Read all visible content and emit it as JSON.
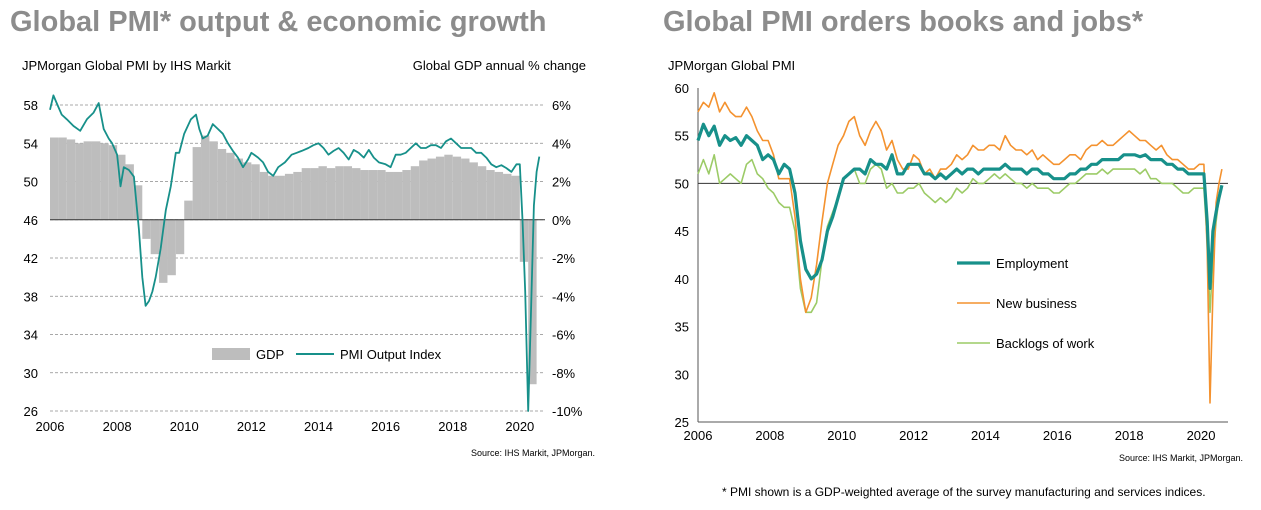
{
  "footnote": "* PMI shown is a GDP-weighted average of the survey manufacturing and services indices.",
  "colors": {
    "teal": "#17908a",
    "orange": "#f4922f",
    "green": "#9ccb67",
    "gdp_gray": "#bdbdbd",
    "grid": "#8c8c8c",
    "title_gray": "#8c8c8c"
  },
  "chart_data": [
    {
      "type": "bar+line",
      "title": "Global PMI* output & economic growth",
      "subtitle_left": "JPMorgan Global PMI by IHS Markit",
      "subtitle_right": "Global GDP annual % change",
      "source": "Source: IHS Markit, JPMorgan.",
      "grid": "dashed horizontal",
      "legend_position": "bottom-right",
      "xlim": [
        2006,
        2020.75
      ],
      "x_ticks": [
        "2006",
        "2008",
        "2010",
        "2012",
        "2014",
        "2016",
        "2018",
        "2020"
      ],
      "left_axis": {
        "ylim": [
          26,
          58
        ],
        "ticks": [
          "26",
          "30",
          "34",
          "38",
          "42",
          "46",
          "50",
          "54",
          "58"
        ]
      },
      "right_axis": {
        "ylim": [
          -10,
          6
        ],
        "ticks": [
          "-10%",
          "-8%",
          "-6%",
          "-4%",
          "-2%",
          "0%",
          "2%",
          "4%",
          "6%"
        ]
      },
      "series": [
        {
          "name": "GDP",
          "kind": "bar",
          "axis": "right",
          "x": [
            2006.0,
            2006.25,
            2006.5,
            2006.75,
            2007.0,
            2007.25,
            2007.5,
            2007.75,
            2008.0,
            2008.25,
            2008.5,
            2008.75,
            2009.0,
            2009.25,
            2009.5,
            2009.75,
            2010.0,
            2010.25,
            2010.5,
            2010.75,
            2011.0,
            2011.25,
            2011.5,
            2011.75,
            2012.0,
            2012.25,
            2012.5,
            2012.75,
            2013.0,
            2013.25,
            2013.5,
            2013.75,
            2014.0,
            2014.25,
            2014.5,
            2014.75,
            2015.0,
            2015.25,
            2015.5,
            2015.75,
            2016.0,
            2016.25,
            2016.5,
            2016.75,
            2017.0,
            2017.25,
            2017.5,
            2017.75,
            2018.0,
            2018.25,
            2018.5,
            2018.75,
            2019.0,
            2019.25,
            2019.5,
            2019.75,
            2020.0,
            2020.25
          ],
          "y": [
            4.3,
            4.3,
            4.2,
            4.0,
            4.1,
            4.1,
            4.0,
            3.9,
            3.4,
            2.9,
            1.8,
            -1.0,
            -1.8,
            -3.3,
            -2.9,
            -1.8,
            1.0,
            3.8,
            4.4,
            4.1,
            3.7,
            3.5,
            3.2,
            3.0,
            2.9,
            2.5,
            2.3,
            2.3,
            2.4,
            2.5,
            2.7,
            2.7,
            2.8,
            2.7,
            2.8,
            2.8,
            2.7,
            2.6,
            2.6,
            2.6,
            2.5,
            2.5,
            2.6,
            2.8,
            3.1,
            3.2,
            3.3,
            3.4,
            3.3,
            3.2,
            3.0,
            2.8,
            2.6,
            2.5,
            2.4,
            2.3,
            -2.2,
            -8.6
          ]
        },
        {
          "name": "PMI Output Index",
          "kind": "line",
          "axis": "left",
          "x": [
            2006.0,
            2006.1,
            2006.2,
            2006.35,
            2006.5,
            2006.7,
            2006.9,
            2007.1,
            2007.3,
            2007.45,
            2007.6,
            2007.75,
            2007.85,
            2008.0,
            2008.1,
            2008.2,
            2008.35,
            2008.5,
            2008.65,
            2008.75,
            2008.85,
            2008.95,
            2009.05,
            2009.15,
            2009.3,
            2009.45,
            2009.6,
            2009.75,
            2009.85,
            2010.0,
            2010.2,
            2010.35,
            2010.45,
            2010.55,
            2010.7,
            2010.85,
            2011.0,
            2011.15,
            2011.3,
            2011.45,
            2011.6,
            2011.75,
            2011.9,
            2012.0,
            2012.2,
            2012.35,
            2012.5,
            2012.65,
            2012.8,
            2013.0,
            2013.2,
            2013.35,
            2013.5,
            2013.7,
            2013.85,
            2014.0,
            2014.15,
            2014.3,
            2014.45,
            2014.6,
            2014.75,
            2014.9,
            2015.05,
            2015.2,
            2015.35,
            2015.5,
            2015.65,
            2015.8,
            2016.0,
            2016.15,
            2016.3,
            2016.45,
            2016.6,
            2016.75,
            2016.9,
            2017.05,
            2017.2,
            2017.35,
            2017.5,
            2017.65,
            2017.8,
            2017.95,
            2018.1,
            2018.25,
            2018.4,
            2018.55,
            2018.7,
            2018.85,
            2019.0,
            2019.15,
            2019.3,
            2019.45,
            2019.6,
            2019.75,
            2019.9,
            2020.0,
            2020.08,
            2020.16,
            2020.25,
            2020.33,
            2020.42,
            2020.5,
            2020.58
          ],
          "y": [
            57.5,
            59.0,
            58.2,
            57.0,
            56.5,
            55.8,
            55.3,
            56.5,
            57.2,
            58.2,
            55.5,
            54.5,
            54.0,
            52.8,
            49.5,
            51.5,
            51.2,
            50.5,
            45.0,
            40.0,
            37.0,
            37.5,
            38.5,
            40.0,
            43.0,
            47.0,
            49.5,
            53.0,
            53.0,
            55.0,
            56.5,
            57.0,
            55.5,
            54.5,
            54.8,
            56.0,
            55.5,
            55.0,
            54.0,
            53.2,
            52.5,
            51.5,
            52.3,
            53.0,
            52.5,
            52.0,
            51.0,
            50.6,
            51.5,
            52.0,
            52.8,
            53.0,
            53.2,
            53.5,
            53.8,
            54.0,
            53.5,
            52.8,
            53.2,
            53.5,
            53.0,
            52.3,
            53.3,
            53.0,
            52.5,
            53.3,
            52.5,
            52.0,
            51.8,
            51.5,
            52.8,
            52.8,
            53.0,
            53.5,
            54.0,
            53.5,
            53.5,
            53.8,
            53.8,
            53.5,
            54.2,
            54.5,
            54.0,
            53.5,
            53.5,
            53.5,
            53.0,
            53.0,
            52.5,
            51.8,
            51.5,
            51.7,
            51.4,
            51.0,
            51.8,
            51.8,
            46.0,
            38.5,
            26.0,
            36.0,
            47.5,
            51.0,
            52.6
          ]
        }
      ]
    },
    {
      "type": "line",
      "title": "Global PMI orders books and jobs*",
      "subtitle_left": "JPMorgan Global PMI",
      "source": "Source: IHS Markit, JPMorgan.",
      "legend_position": "center",
      "reference_line": 50,
      "xlim": [
        2006,
        2020.75
      ],
      "ylim": [
        25,
        60
      ],
      "x_ticks": [
        "2006",
        "2008",
        "2010",
        "2012",
        "2014",
        "2016",
        "2018",
        "2020"
      ],
      "y_ticks": [
        "25",
        "30",
        "35",
        "40",
        "45",
        "50",
        "55",
        "60"
      ],
      "x": [
        2006.0,
        2006.15,
        2006.3,
        2006.45,
        2006.6,
        2006.75,
        2006.9,
        2007.05,
        2007.2,
        2007.35,
        2007.5,
        2007.65,
        2007.8,
        2007.95,
        2008.1,
        2008.25,
        2008.4,
        2008.55,
        2008.7,
        2008.85,
        2009.0,
        2009.15,
        2009.3,
        2009.45,
        2009.6,
        2009.75,
        2009.9,
        2010.05,
        2010.2,
        2010.35,
        2010.5,
        2010.65,
        2010.8,
        2010.95,
        2011.1,
        2011.25,
        2011.4,
        2011.55,
        2011.7,
        2011.85,
        2012.0,
        2012.15,
        2012.3,
        2012.45,
        2012.6,
        2012.75,
        2012.9,
        2013.05,
        2013.2,
        2013.35,
        2013.5,
        2013.65,
        2013.8,
        2013.95,
        2014.1,
        2014.25,
        2014.4,
        2014.55,
        2014.7,
        2014.85,
        2015.0,
        2015.15,
        2015.3,
        2015.45,
        2015.6,
        2015.75,
        2015.9,
        2016.05,
        2016.2,
        2016.35,
        2016.5,
        2016.65,
        2016.8,
        2016.95,
        2017.1,
        2017.25,
        2017.4,
        2017.55,
        2017.7,
        2017.85,
        2018.0,
        2018.15,
        2018.3,
        2018.45,
        2018.6,
        2018.75,
        2018.9,
        2019.05,
        2019.2,
        2019.35,
        2019.5,
        2019.65,
        2019.8,
        2019.95,
        2020.08,
        2020.17,
        2020.25,
        2020.33,
        2020.42,
        2020.5,
        2020.58
      ],
      "series": [
        {
          "name": "Employment",
          "y": [
            54.5,
            56.2,
            55.0,
            56.0,
            54.0,
            55.0,
            54.5,
            54.8,
            54.0,
            55.0,
            54.5,
            54.0,
            52.5,
            53.0,
            52.5,
            51.0,
            52.0,
            51.5,
            49.0,
            44.0,
            41.0,
            40.0,
            40.5,
            42.0,
            45.0,
            46.5,
            48.5,
            50.5,
            51.0,
            51.5,
            51.5,
            51.0,
            52.5,
            52.0,
            52.0,
            51.5,
            53.0,
            51.0,
            51.0,
            52.0,
            52.0,
            52.0,
            51.0,
            51.0,
            50.5,
            51.0,
            50.5,
            51.0,
            51.5,
            51.0,
            51.5,
            51.5,
            51.0,
            51.5,
            51.5,
            51.5,
            51.5,
            52.0,
            51.5,
            51.5,
            51.5,
            51.0,
            51.5,
            51.5,
            51.0,
            51.0,
            50.5,
            50.5,
            50.5,
            51.0,
            51.0,
            51.5,
            51.5,
            52.0,
            52.0,
            52.5,
            52.5,
            52.5,
            52.5,
            53.0,
            53.0,
            53.0,
            52.8,
            53.0,
            52.5,
            52.5,
            52.5,
            52.0,
            52.0,
            51.5,
            51.5,
            51.0,
            51.0,
            51.0,
            51.0,
            46.0,
            39.0,
            45.0,
            47.0,
            48.5,
            49.8
          ]
        },
        {
          "name": "New business",
          "y": [
            57.5,
            58.5,
            58.0,
            59.5,
            57.5,
            58.5,
            57.5,
            57.0,
            57.0,
            58.0,
            57.0,
            55.5,
            54.5,
            54.5,
            53.0,
            50.5,
            50.5,
            50.5,
            46.5,
            40.0,
            36.5,
            38.0,
            41.5,
            46.0,
            50.0,
            52.0,
            54.0,
            55.0,
            56.5,
            57.0,
            55.0,
            54.0,
            55.5,
            56.5,
            55.5,
            53.5,
            54.5,
            52.5,
            51.5,
            51.5,
            53.0,
            52.5,
            51.0,
            51.5,
            50.5,
            51.5,
            51.5,
            52.0,
            53.0,
            52.5,
            53.0,
            54.0,
            53.5,
            53.5,
            54.0,
            54.0,
            53.5,
            55.0,
            54.0,
            53.5,
            53.5,
            53.0,
            53.5,
            52.5,
            53.0,
            52.5,
            52.0,
            52.0,
            52.5,
            53.0,
            53.0,
            52.5,
            53.5,
            54.0,
            54.0,
            54.5,
            54.0,
            54.0,
            54.5,
            55.0,
            55.5,
            55.0,
            54.5,
            54.5,
            54.0,
            53.5,
            54.0,
            53.0,
            52.5,
            52.5,
            52.0,
            51.5,
            51.5,
            52.0,
            52.0,
            43.0,
            27.0,
            38.5,
            48.0,
            50.0,
            51.5
          ]
        },
        {
          "name": "Backlogs of work",
          "y": [
            51.0,
            52.5,
            51.0,
            53.0,
            50.0,
            50.5,
            51.0,
            50.5,
            50.0,
            52.0,
            52.5,
            51.0,
            50.5,
            49.5,
            49.0,
            48.0,
            47.5,
            47.5,
            45.0,
            39.0,
            36.5,
            36.5,
            37.5,
            42.0,
            45.5,
            47.0,
            48.5,
            50.5,
            51.0,
            51.5,
            50.0,
            50.0,
            51.5,
            52.0,
            51.5,
            49.5,
            50.0,
            49.0,
            49.0,
            49.5,
            49.5,
            50.0,
            49.0,
            48.5,
            48.0,
            48.5,
            48.0,
            48.5,
            49.5,
            49.0,
            49.5,
            50.5,
            50.0,
            50.0,
            50.5,
            51.0,
            50.5,
            51.0,
            50.5,
            50.0,
            50.0,
            49.5,
            50.0,
            49.5,
            49.5,
            49.5,
            49.0,
            49.0,
            49.5,
            50.0,
            50.0,
            50.5,
            51.0,
            51.0,
            51.0,
            51.5,
            51.0,
            51.5,
            51.5,
            51.5,
            51.5,
            51.5,
            51.0,
            51.5,
            50.5,
            50.5,
            50.0,
            50.0,
            50.0,
            49.5,
            49.0,
            49.0,
            49.5,
            49.5,
            49.5,
            44.0,
            36.5,
            42.0,
            46.0,
            48.5,
            49.5
          ]
        }
      ]
    }
  ]
}
